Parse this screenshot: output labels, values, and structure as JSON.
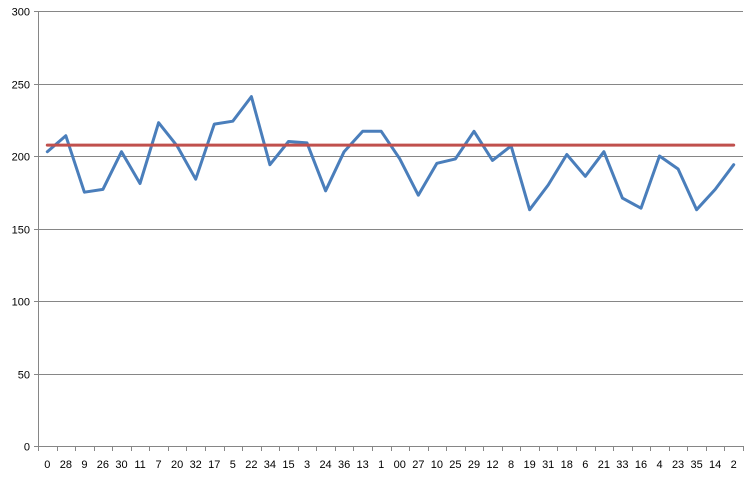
{
  "chart_data": {
    "type": "line",
    "title": "",
    "xlabel": "",
    "ylabel": "",
    "ylim": [
      0,
      300
    ],
    "yticks": [
      0,
      50,
      100,
      150,
      200,
      250,
      300
    ],
    "grid": "horizontal",
    "legend": "none",
    "categories": [
      "0",
      "28",
      "9",
      "26",
      "30",
      "11",
      "7",
      "20",
      "32",
      "17",
      "5",
      "22",
      "34",
      "15",
      "3",
      "24",
      "36",
      "13",
      "1",
      "00",
      "27",
      "10",
      "25",
      "29",
      "12",
      "8",
      "19",
      "31",
      "18",
      "6",
      "21",
      "33",
      "16",
      "4",
      "23",
      "35",
      "14",
      "2"
    ],
    "series": [
      {
        "color": "#4a7ebb",
        "values": [
          203,
          214,
          175,
          177,
          203,
          181,
          223,
          207,
          184,
          222,
          224,
          241,
          194,
          210,
          209,
          176,
          203,
          217,
          217,
          198,
          173,
          195,
          198,
          217,
          197,
          207,
          163,
          180,
          201,
          186,
          203,
          171,
          164,
          200,
          191,
          163,
          177,
          194
        ]
      },
      {
        "color": "#c0504d",
        "values": [
          207.5,
          207.5,
          207.5,
          207.5,
          207.5,
          207.5,
          207.5,
          207.5,
          207.5,
          207.5,
          207.5,
          207.5,
          207.5,
          207.5,
          207.5,
          207.5,
          207.5,
          207.5,
          207.5,
          207.5,
          207.5,
          207.5,
          207.5,
          207.5,
          207.5,
          207.5,
          207.5,
          207.5,
          207.5,
          207.5,
          207.5,
          207.5,
          207.5,
          207.5,
          207.5,
          207.5,
          207.5,
          207.5
        ]
      }
    ]
  }
}
